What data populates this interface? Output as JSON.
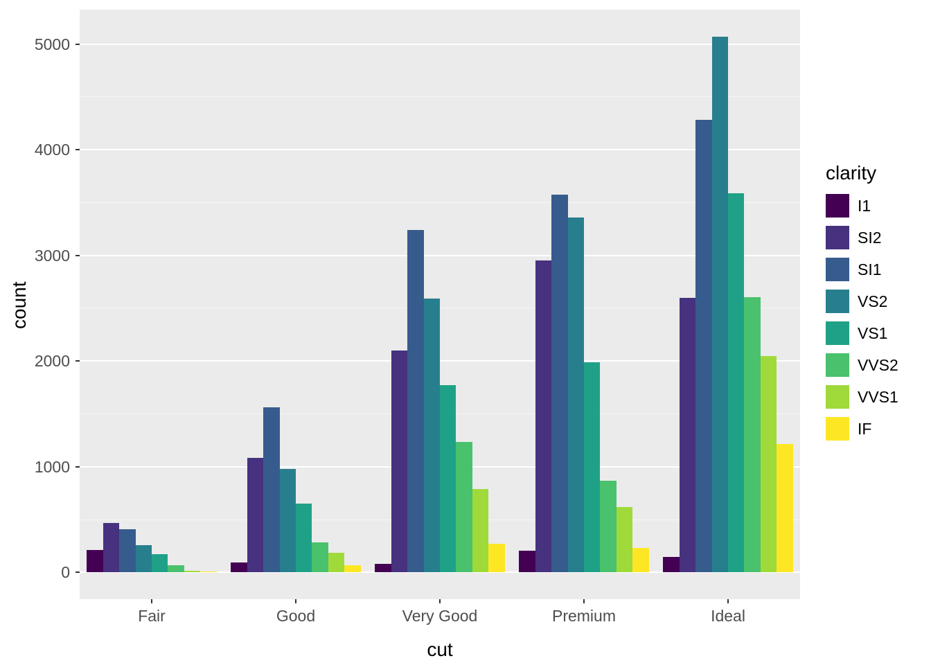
{
  "figure": {
    "background": "#FFFFFF"
  },
  "chart_data": {
    "type": "bar",
    "subtype": "grouped-dodged",
    "title": "",
    "xlabel": "cut",
    "ylabel": "count",
    "legend_title": "clarity",
    "legend_position": "right",
    "grid": true,
    "panel_background": "#EBEBEB",
    "grid_major_color": "#FFFFFF",
    "grid_minor_color": "#F5F5F5",
    "axis_text_color": "#4D4D4D",
    "axis_title_color": "#000000",
    "tick_mark_color": "#333333",
    "categories": [
      "Fair",
      "Good",
      "Very Good",
      "Premium",
      "Ideal"
    ],
    "y_ticks": [
      0,
      1000,
      2000,
      3000,
      4000,
      5000
    ],
    "y_minor_ticks": [
      500,
      1500,
      2500,
      3500,
      4500
    ],
    "ylim": [
      0,
      5071
    ],
    "series": [
      {
        "name": "I1",
        "color": "#440154",
        "values": [
          210,
          96,
          84,
          205,
          146
        ]
      },
      {
        "name": "SI2",
        "color": "#46327E",
        "values": [
          466,
          1081,
          2100,
          2949,
          2598
        ]
      },
      {
        "name": "SI1",
        "color": "#365C8D",
        "values": [
          408,
          1560,
          3240,
          3575,
          4282
        ]
      },
      {
        "name": "VS2",
        "color": "#277F8E",
        "values": [
          261,
          978,
          2591,
          3357,
          5071
        ]
      },
      {
        "name": "VS1",
        "color": "#1FA187",
        "values": [
          170,
          648,
          1775,
          1989,
          3589
        ]
      },
      {
        "name": "VVS2",
        "color": "#4AC16D",
        "values": [
          69,
          286,
          1235,
          870,
          2606
        ]
      },
      {
        "name": "VVS1",
        "color": "#9FDA3A",
        "values": [
          17,
          186,
          789,
          616,
          2047
        ]
      },
      {
        "name": "IF",
        "color": "#FDE725",
        "values": [
          9,
          71,
          268,
          230,
          1212
        ]
      }
    ]
  }
}
